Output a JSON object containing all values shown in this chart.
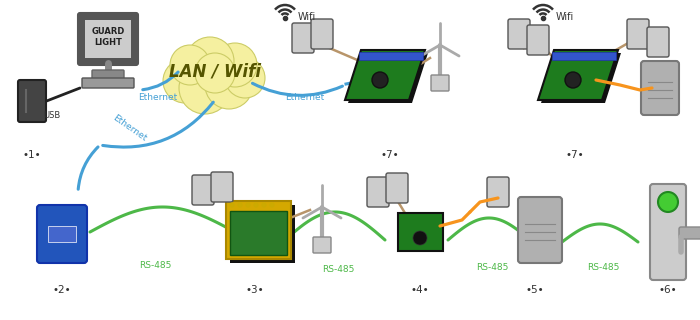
{
  "bg_color": "#ffffff",
  "ethernet_color": "#45a0d5",
  "rs485_color": "#4db848",
  "orange_color": "#f7941d",
  "tan_color": "#b8956a",
  "usb_color": "#222222",
  "cloud_color": "#f5f0a0",
  "cloud_edge": "#cccc66",
  "pcb_green": "#1e7c1e",
  "pcb_dark": "#0a3a0a",
  "board_yellow": "#d4a800",
  "board_green": "#2a7a2a",
  "blue_box": "#2255bb",
  "gray_dark": "#555555",
  "gray_med": "#888888",
  "gray_light": "#bbbbbb",
  "gray_box": "#aaaaaa",
  "cloud_text": "LAN / Wifi",
  "label_usb": "USB",
  "label_ethernet": "Ethernet",
  "label_rs485": "RS-485",
  "label_wifi": "Wifi",
  "label_guardlight": "GUARD\nLIGHT",
  "lw_cable": 2.2
}
